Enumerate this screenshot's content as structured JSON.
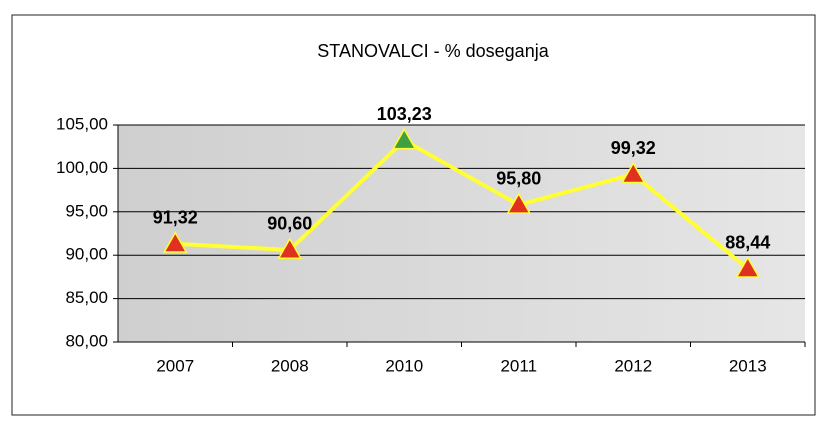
{
  "chart_data": {
    "type": "line",
    "title": "STANOVALCI - %  doseganja",
    "categories": [
      "2007",
      "2008",
      "2010",
      "2011",
      "2012",
      "2013"
    ],
    "series": [
      {
        "color": "#ffff33",
        "marker_colors": [
          "#e03020",
          "#e03020",
          "#40a040",
          "#e03020",
          "#e03020",
          "#e03020"
        ],
        "values": [
          91.32,
          90.6,
          103.23,
          95.8,
          99.32,
          88.44
        ],
        "value_labels": [
          "91,32",
          "90,60",
          "103,23",
          "95,80",
          "99,32",
          "88,44"
        ]
      }
    ],
    "ylim": [
      80,
      105
    ],
    "yticks": [
      {
        "value": 80,
        "label": "80,00"
      },
      {
        "value": 85,
        "label": "85,00"
      },
      {
        "value": 90,
        "label": "90,00"
      },
      {
        "value": 95,
        "label": "95,00"
      },
      {
        "value": 100,
        "label": "100,00"
      },
      {
        "value": 105,
        "label": "105,00"
      }
    ],
    "grid": true
  }
}
